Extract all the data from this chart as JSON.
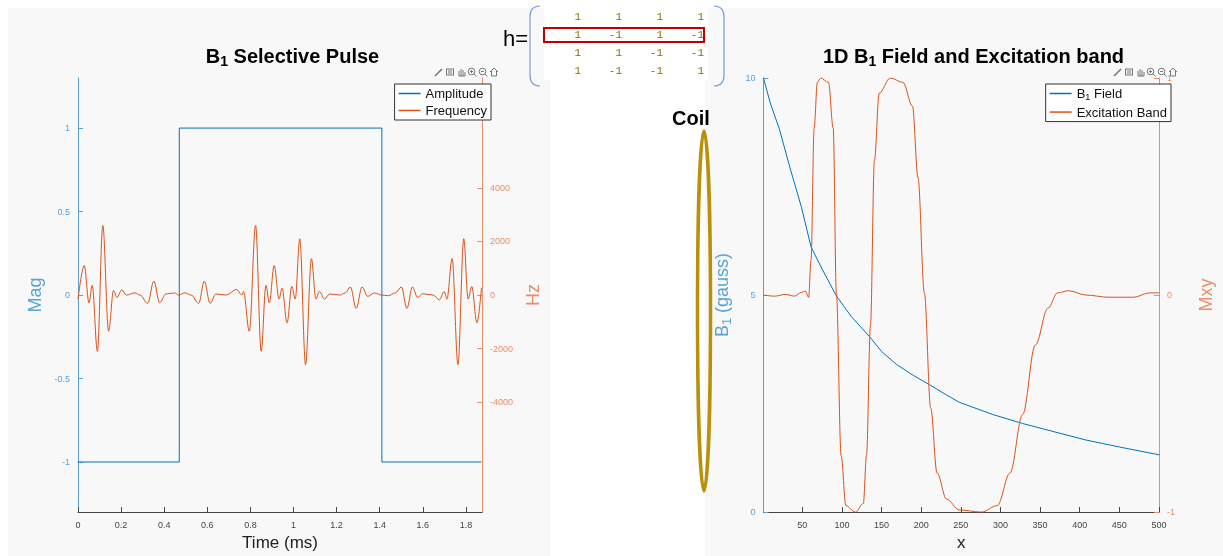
{
  "chart_data": [
    {
      "type": "line",
      "title": "B$_{1}$ Selective Pulse",
      "xlabel": "Time (ms)",
      "ylabel": "Mag",
      "y2label": "Hz",
      "xlim": [
        0,
        1.875
      ],
      "xticks": [
        0,
        0.2,
        0.4,
        0.6,
        0.8,
        1,
        1.2,
        1.4,
        1.6,
        1.8
      ],
      "ylim": [
        -1.3,
        1.3
      ],
      "yticks": [
        -1,
        -0.5,
        0,
        0.5,
        1
      ],
      "y2lim": [
        -8100,
        8100
      ],
      "y2ticks": [
        -4000,
        -2000,
        0,
        2000,
        4000
      ],
      "legend": "top right",
      "grid": false,
      "marker": "none",
      "line_style": "solid",
      "series": [
        {
          "name": "Amplitude",
          "color": "#0072bd",
          "x": [
            0,
            0.47,
            0.47,
            1.41,
            1.41,
            1.87
          ],
          "values": [
            -1,
            -1,
            1,
            1,
            -1,
            -1
          ]
        },
        {
          "name": "Frequency",
          "color": "#d95319",
          "axis": "y2",
          "x": [
            0,
            0.029,
            0.051,
            0.066,
            0.09,
            0.115,
            0.142,
            0.165,
            0.181,
            0.203,
            0.224,
            0.264,
            0.288,
            0.323,
            0.352,
            0.379,
            0.408,
            0.448,
            0.467,
            0.496,
            0.525,
            0.56,
            0.586,
            0.613,
            0.64,
            0.688,
            0.736,
            0.76,
            0.768,
            0.795,
            0.824,
            0.85,
            0.872,
            0.888,
            0.91,
            0.933,
            0.947,
            0.97,
            0.992,
            1.008,
            1.029,
            1.056,
            1.083,
            1.104,
            1.12,
            1.144,
            1.168,
            1.216,
            1.24,
            1.264,
            1.291,
            1.318,
            1.344,
            1.376,
            1.408,
            1.44,
            1.472,
            1.501,
            1.526,
            1.552,
            1.576,
            1.6,
            1.648,
            1.677,
            1.699,
            1.712,
            1.736,
            1.763,
            1.79,
            1.81,
            1.827,
            1.851,
            1.872
          ],
          "values": [
            -150,
            1100,
            -290,
            360,
            -2100,
            2600,
            -1350,
            170,
            -90,
            195,
            0,
            80,
            0,
            -310,
            520,
            -290,
            40,
            80,
            0,
            80,
            0,
            -310,
            520,
            -310,
            40,
            0,
            210,
            0,
            130,
            -1350,
            2600,
            -2100,
            360,
            -290,
            1100,
            -150,
            260,
            -1040,
            320,
            -150,
            2100,
            -2600,
            1360,
            -150,
            130,
            -150,
            40,
            0,
            80,
            300,
            -500,
            300,
            -50,
            80,
            0,
            -25,
            80,
            300,
            -500,
            300,
            -90,
            50,
            0,
            -180,
            130,
            -150,
            1360,
            -2600,
            2100,
            -150,
            320,
            -1040,
            260
          ]
        }
      ]
    },
    {
      "type": "line",
      "title": "1D B$_{1}$ Field and Excitation band",
      "xlabel": "x",
      "ylabel": "B$_{1}$ (gauss)",
      "y2label": "Mxy",
      "xlim": [
        1,
        500
      ],
      "xticks": [
        50,
        100,
        150,
        200,
        250,
        300,
        350,
        400,
        450,
        500
      ],
      "ylim": [
        0,
        10
      ],
      "yticks": [
        0,
        5,
        10
      ],
      "y2lim": [
        -1,
        1
      ],
      "y2ticks": [
        -1,
        0,
        1
      ],
      "legend": "top right",
      "grid": false,
      "marker": "none",
      "line_style": "solid",
      "series": [
        {
          "name": "B$_{1}$ Field",
          "color": "#0072bd",
          "x": [
            1,
            10,
            21,
            35,
            49,
            61,
            75,
            93,
            112,
            135,
            150,
            169,
            190,
            210,
            230,
            248,
            290,
            328,
            370,
            408,
            450,
            500
          ],
          "values": [
            10,
            9.4,
            8.83,
            7.9,
            7.02,
            6.11,
            5.6,
            4.98,
            4.5,
            4.04,
            3.7,
            3.4,
            3.15,
            2.94,
            2.72,
            2.53,
            2.25,
            2.04,
            1.84,
            1.66,
            1.5,
            1.32
          ]
        },
        {
          "name": "Excitation Band",
          "color": "#d95319",
          "axis": "y2",
          "x": [
            1,
            15,
            29,
            40,
            49,
            54,
            58,
            61,
            65,
            69,
            73,
            83,
            89,
            93,
            99,
            105,
            117,
            127,
            131,
            136,
            141,
            147,
            161,
            177,
            189,
            196,
            204,
            212,
            220,
            232,
            248,
            276,
            296,
            312,
            328,
            344,
            360,
            372,
            386,
            408,
            436,
            468,
            488,
            500
          ],
          "values": [
            0,
            -0.005,
            0.003,
            -0.005,
            0.012,
            0.018,
            -0.011,
            0.16,
            0.77,
            0.98,
            1,
            0.98,
            0.77,
            0.01,
            -0.74,
            -0.97,
            -1,
            -0.96,
            -0.74,
            -0.14,
            0.62,
            0.93,
            1,
            0.98,
            0.87,
            0.54,
            0.01,
            -0.52,
            -0.82,
            -0.94,
            -0.99,
            -1,
            -0.97,
            -0.82,
            -0.55,
            -0.23,
            -0.06,
            0.01,
            0.02,
            0,
            -0.01,
            -0.01,
            0.01,
            0.01
          ]
        }
      ]
    },
    {
      "type": "other",
      "annotations": [
        "h=",
        "1",
        "1",
        "1",
        "1",
        "1",
        "-1",
        "1",
        "-1",
        "1",
        "1",
        "-1",
        "-1",
        "1",
        "-1",
        "-1",
        "1",
        "Coil"
      ]
    }
  ]
}
